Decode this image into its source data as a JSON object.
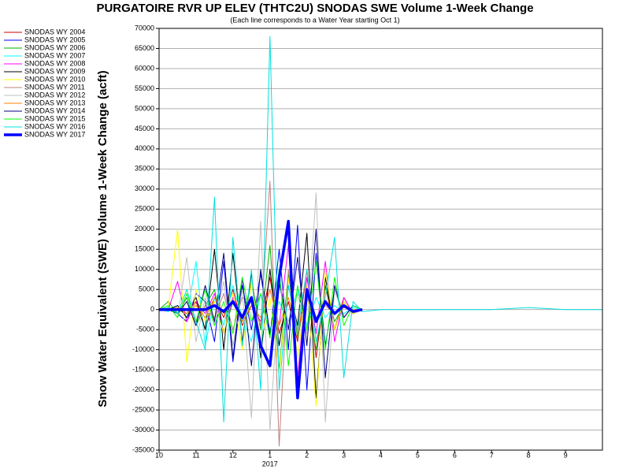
{
  "chart_data": {
    "type": "line",
    "title": "PURGATOIRE RVR UP ELEV (THTC2U) SNODAS SWE Volume 1-Week Change",
    "subtitle": "(Each line corresponds to a Water Year starting Oct 1)",
    "y_label": "Snow Water Equivalent (SWE) Volume 1-Week Change (acft)",
    "year_label": "2017",
    "xlim": [
      0,
      12
    ],
    "xticks": [
      {
        "value": 0,
        "label": "10"
      },
      {
        "value": 1,
        "label": "11"
      },
      {
        "value": 2,
        "label": "12"
      },
      {
        "value": 3,
        "label": "1"
      },
      {
        "value": 4,
        "label": "2"
      },
      {
        "value": 5,
        "label": "3"
      },
      {
        "value": 6,
        "label": "4"
      },
      {
        "value": 7,
        "label": "5"
      },
      {
        "value": 8,
        "label": "6"
      },
      {
        "value": 9,
        "label": "7"
      },
      {
        "value": 10,
        "label": "8"
      },
      {
        "value": 11,
        "label": "9"
      }
    ],
    "ylim": [
      -35000,
      70000
    ],
    "yticks": [
      -35000,
      -30000,
      -25000,
      -20000,
      -15000,
      -10000,
      -5000,
      0,
      5000,
      10000,
      15000,
      20000,
      25000,
      30000,
      35000,
      40000,
      45000,
      50000,
      55000,
      60000,
      65000,
      70000
    ],
    "grid": true,
    "legend": "left",
    "x": [
      0,
      0.25,
      0.5,
      0.75,
      1,
      1.25,
      1.5,
      1.75,
      2,
      2.25,
      2.5,
      2.75,
      3,
      3.25,
      3.5,
      3.75,
      4,
      4.25,
      4.5,
      4.75,
      5,
      5.25,
      5.5,
      6,
      7,
      8,
      9,
      10,
      11,
      12
    ],
    "series": [
      {
        "name": "SNODAS WY 2004",
        "color": "#d00000",
        "width": 1,
        "values": [
          0,
          0,
          0,
          -1000,
          2000,
          -5000,
          3000,
          -2000,
          5000,
          -4000,
          1000,
          -3000,
          8000,
          -6000,
          2000,
          -8000,
          10000,
          -12000,
          6000,
          -5000,
          3000,
          -1000,
          0,
          null,
          null,
          null,
          null,
          null,
          null,
          null
        ]
      },
      {
        "name": "SNODAS WY 2005",
        "color": "#0000ff",
        "width": 1,
        "values": [
          0,
          500,
          -1000,
          -3000,
          4000,
          2000,
          -8000,
          12000,
          -13000,
          6000,
          -5000,
          9000,
          -7000,
          15000,
          -10000,
          21000,
          -20000,
          14000,
          -9000,
          5000,
          -2000,
          1000,
          0,
          null,
          null,
          null,
          null,
          null,
          null,
          null
        ]
      },
      {
        "name": "SNODAS WY 2006",
        "color": "#00b000",
        "width": 1,
        "values": [
          0,
          2000,
          -1000,
          3000,
          -4000,
          1000,
          5000,
          -6000,
          2000,
          -3000,
          7000,
          -5000,
          16000,
          -15000,
          9000,
          -7000,
          4000,
          -10000,
          6000,
          -3000,
          1000,
          -500,
          0,
          null,
          null,
          null,
          null,
          null,
          null,
          null
        ]
      },
      {
        "name": "SNODAS WY 2007",
        "color": "#00ffff",
        "width": 1,
        "values": [
          0,
          -500,
          1000,
          -2000,
          12000,
          -9000,
          3000,
          -4000,
          6000,
          -2000,
          -8000,
          4000,
          -5000,
          2000,
          -3000,
          5000,
          -4000,
          3000,
          -2000,
          1000,
          -1000,
          500,
          0,
          null,
          null,
          null,
          null,
          null,
          null,
          null
        ]
      },
      {
        "name": "SNODAS WY 2008",
        "color": "#ff00ff",
        "width": 1,
        "values": [
          0,
          0,
          7000,
          -3000,
          2000,
          -1000,
          4000,
          -6000,
          3000,
          -2000,
          1000,
          -3000,
          5000,
          -4000,
          16000,
          -17000,
          8000,
          -6000,
          12000,
          -8000,
          3000,
          -1000,
          0,
          null,
          null,
          null,
          null,
          null,
          null,
          null
        ]
      },
      {
        "name": "SNODAS WY 2009",
        "color": "#000000",
        "width": 1,
        "values": [
          0,
          0,
          1000,
          -2000,
          3000,
          -5000,
          15000,
          -10000,
          14000,
          -8000,
          9000,
          -12000,
          10000,
          -9000,
          6000,
          -4000,
          19000,
          -22000,
          8000,
          -5000,
          2000,
          -1000,
          0,
          null,
          null,
          null,
          null,
          null,
          null,
          null
        ]
      },
      {
        "name": "SNODAS WY 2010",
        "color": "#ffff00",
        "width": 1,
        "values": [
          0,
          500,
          20000,
          -13000,
          5000,
          -3000,
          2000,
          -6000,
          4000,
          -10000,
          7000,
          -8000,
          3000,
          -16000,
          8000,
          -12000,
          6000,
          -24000,
          10000,
          -5000,
          2000,
          -1000,
          0,
          null,
          null,
          null,
          null,
          null,
          null,
          null
        ]
      },
      {
        "name": "SNODAS WY 2011",
        "color": "#c08080",
        "width": 1,
        "values": [
          0,
          0,
          -1000,
          2000,
          -3000,
          1000,
          -2000,
          4000,
          -5000,
          3000,
          2000,
          -4000,
          32000,
          -34000,
          10000,
          -6000,
          3000,
          -2000,
          1000,
          -1000,
          500,
          0,
          0,
          null,
          null,
          null,
          null,
          null,
          null,
          null
        ]
      },
      {
        "name": "SNODAS WY 2012",
        "color": "#c0c0c0",
        "width": 1,
        "values": [
          0,
          1000,
          -2000,
          13000,
          -8000,
          3000,
          -4000,
          7000,
          -9000,
          5000,
          -27000,
          22000,
          -30000,
          6000,
          -3000,
          4000,
          -6000,
          29000,
          -28000,
          5000,
          -2000,
          1000,
          0,
          null,
          null,
          null,
          null,
          null,
          null,
          null
        ]
      },
      {
        "name": "SNODAS WY 2013",
        "color": "#ff8000",
        "width": 1,
        "values": [
          0,
          0,
          500,
          -1000,
          1000,
          -2000,
          3000,
          -1000,
          2000,
          -3000,
          1000,
          -2000,
          5000,
          -4000,
          3000,
          -5000,
          4000,
          -3000,
          2000,
          -1000,
          500,
          0,
          0,
          null,
          null,
          null,
          null,
          null,
          null,
          null
        ]
      },
      {
        "name": "SNODAS WY 2014",
        "color": "#000080",
        "width": 1,
        "values": [
          0,
          0,
          -1000,
          2000,
          -4000,
          6000,
          -3000,
          14000,
          -12000,
          8000,
          -14000,
          10000,
          -6000,
          7000,
          -5000,
          13000,
          -9000,
          20000,
          -17000,
          6000,
          -2000,
          1000,
          0,
          null,
          null,
          null,
          null,
          null,
          null,
          null
        ]
      },
      {
        "name": "SNODAS WY 2015",
        "color": "#00ff00",
        "width": 1,
        "values": [
          0,
          1000,
          -2000,
          4000,
          -3000,
          5000,
          -4000,
          2000,
          -6000,
          8000,
          -3000,
          4000,
          -7000,
          10000,
          -14000,
          6000,
          -5000,
          12000,
          -10000,
          8000,
          -4000,
          1000,
          0,
          null,
          null,
          null,
          null,
          null,
          null,
          null
        ]
      },
      {
        "name": "SNODAS WY 2016",
        "color": "#00e0e0",
        "width": 1,
        "values": [
          0,
          500,
          -1000,
          5000,
          -3000,
          -10000,
          28000,
          -28000,
          18000,
          -9000,
          10000,
          -20000,
          68000,
          -20000,
          6000,
          -5000,
          10000,
          -8000,
          3000,
          18000,
          -17000,
          2000,
          -500,
          0,
          0,
          0,
          0,
          500,
          0,
          0
        ]
      },
      {
        "name": "SNODAS WY 2017",
        "color": "#0000ff",
        "width": 3.5,
        "values": [
          0,
          0,
          0,
          0,
          0,
          0,
          1000,
          -500,
          2000,
          -2000,
          3000,
          -9000,
          -14000,
          8000,
          22000,
          -22000,
          5000,
          -3000,
          2000,
          -1000,
          1000,
          -500,
          0,
          null,
          null,
          null,
          null,
          null,
          null,
          null
        ]
      }
    ]
  }
}
